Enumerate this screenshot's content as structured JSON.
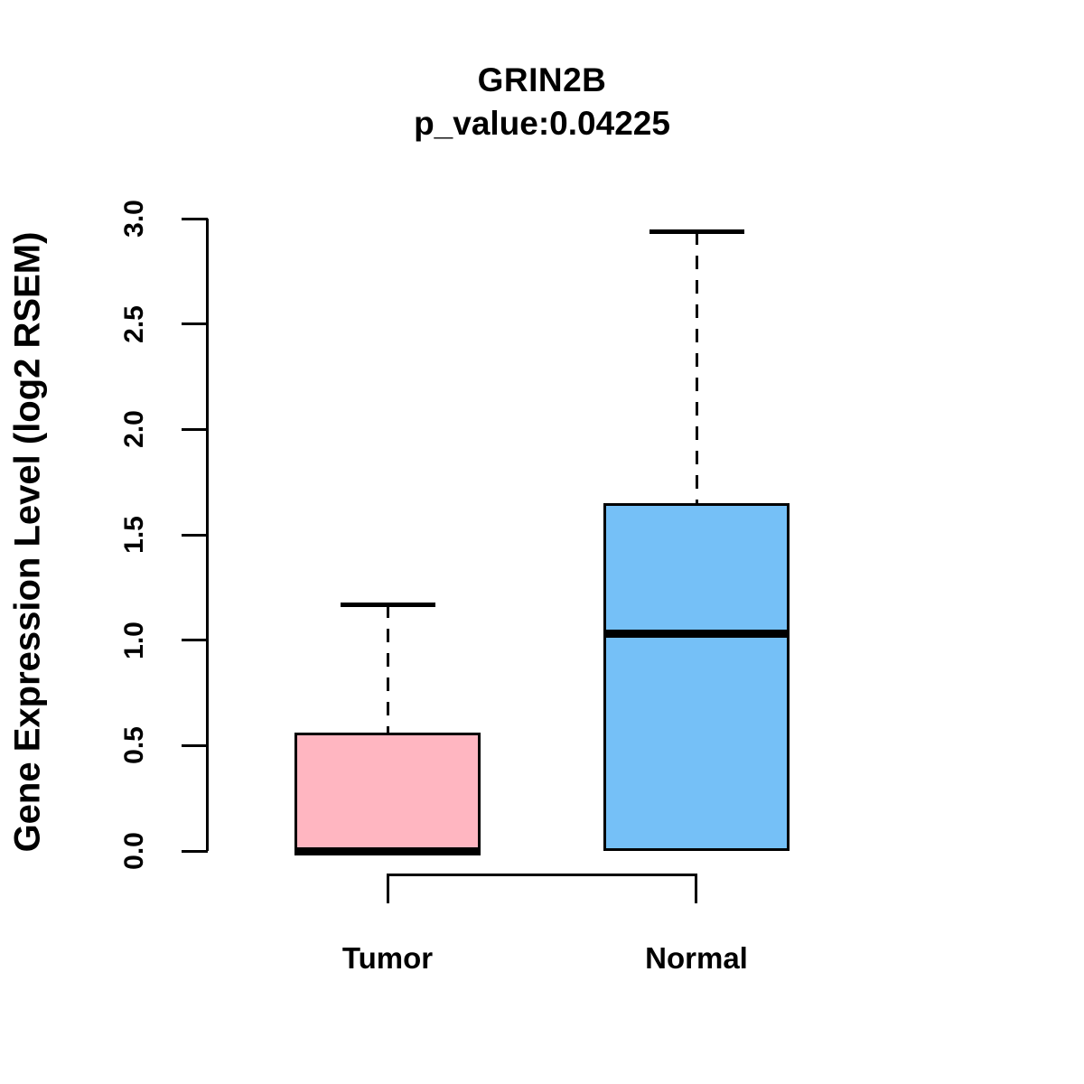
{
  "title": "GRIN2B",
  "subtitle": "p_value:0.04225",
  "chart_data": {
    "type": "box",
    "title": "GRIN2B",
    "subtitle": "p_value:0.04225",
    "xlabel": "",
    "ylabel": "Gene Expression Level (log2 RSEM)",
    "categories": [
      "Tumor",
      "Normal"
    ],
    "ylim": [
      0.0,
      3.0
    ],
    "ytick_labels": [
      "0.0",
      "0.5",
      "1.0",
      "1.5",
      "2.0",
      "2.5",
      "3.0"
    ],
    "ytick_values": [
      0.0,
      0.5,
      1.0,
      1.5,
      2.0,
      2.5,
      3.0
    ],
    "grid": false,
    "legend": "none",
    "line_color": "#000000",
    "background_color": "#ffffff",
    "boxes": [
      {
        "category": "Tumor",
        "fill_color": "#ffb6c1",
        "whisker_low": 0.0,
        "q1": 0.0,
        "median": 0.0,
        "q3": 0.56,
        "whisker_high": 1.17
      },
      {
        "category": "Normal",
        "fill_color": "#75c0f7",
        "whisker_low": 0.0,
        "q1": 0.0,
        "median": 1.03,
        "q3": 1.65,
        "whisker_high": 2.94
      }
    ]
  }
}
